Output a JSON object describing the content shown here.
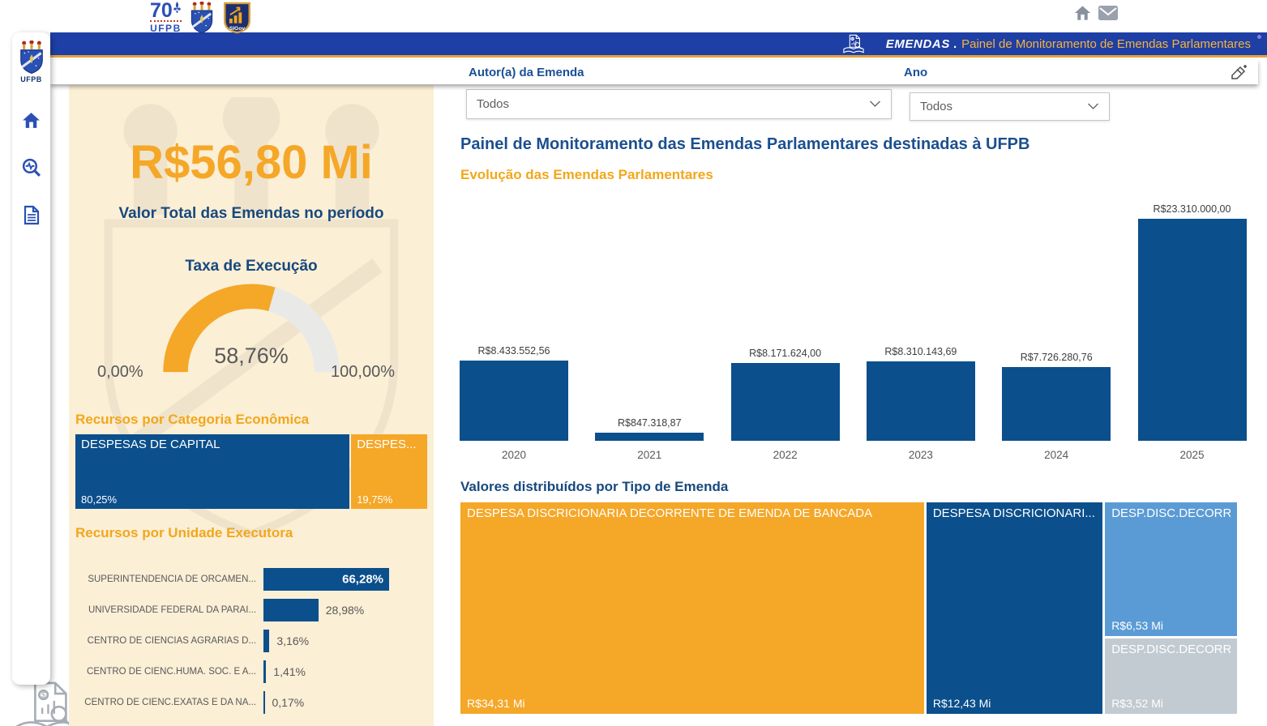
{
  "top_bar": {
    "logos": {
      "ufpb70_number": "70",
      "ufpb70_name": "UFPB",
      "sigov": "SIGov"
    }
  },
  "header": {
    "brand": "EMENDAS",
    "dot": ".",
    "title": "Painel de Monitoramento de Emendas Parlamentares"
  },
  "sidebar": {
    "logo_label": "UFPB"
  },
  "filters": {
    "autor": {
      "label": "Autor(a) da Emenda",
      "value": "Todos"
    },
    "ano": {
      "label": "Ano",
      "value": "Todos"
    }
  },
  "left_panel": {
    "kpi_value": "R$56,80 Mi",
    "kpi_label": "Valor Total das Emendas no período",
    "gauge_title": "Taxa de Execução",
    "categoria_title": "Recursos por Categoria Econômica",
    "unidade_title": "Recursos por Unidade Executora"
  },
  "main": {
    "title": "Painel de Monitoramento das Emendas Parlamentares destinadas à UFPB",
    "evolution_title": "Evolução das Emendas Parlamentares",
    "tipo_title": "Valores distribuídos por Tipo de Emenda"
  },
  "icons": {
    "home": "home-icon",
    "mail": "mail-icon",
    "search": "search-analytics-icon",
    "document": "document-icon",
    "clear_filter": "clear-filter-icon",
    "brand": "emendas-book-icon"
  },
  "colors": {
    "header_blue": "#1E3FA5",
    "bar_blue": "#0B4F8C",
    "orange": "#F5A728",
    "beige": "#FBEFD6",
    "light_blue": "#5B9BD5",
    "gray_block": "#C3CBD2",
    "title_blue": "#17497D"
  },
  "chart_data": [
    {
      "name": "taxa_execucao",
      "type": "gauge",
      "title": "Taxa de Execução",
      "value": 58.76,
      "value_label": "58,76%",
      "min": 0,
      "max": 100,
      "min_label": "0,00%",
      "max_label": "100,00%"
    },
    {
      "name": "categoria_economica",
      "type": "treemap",
      "title": "Recursos por Categoria Econômica",
      "items": [
        {
          "label": "DESPESAS DE CAPITAL",
          "value": 80.25,
          "value_label": "80,25%",
          "color": "#0B4F8C"
        },
        {
          "label": "DESPES...",
          "value": 19.75,
          "value_label": "19,75%",
          "color": "#F5A728"
        }
      ]
    },
    {
      "name": "unidade_executora",
      "type": "bar",
      "orientation": "horizontal",
      "title": "Recursos por Unidade Executora",
      "categories": [
        "SUPERINTENDENCIA DE ORCAMEN...",
        "UNIVERSIDADE FEDERAL DA PARAI...",
        "CENTRO DE CIENCIAS AGRARIAS D...",
        "CENTRO DE CIENC.HUMA. SOC. E A...",
        "CENTRO DE CIENC.EXATAS E DA NA..."
      ],
      "values": [
        66.28,
        28.98,
        3.16,
        1.41,
        0.17
      ],
      "value_labels": [
        "66,28%",
        "28,98%",
        "3,16%",
        "1,41%",
        "0,17%"
      ]
    },
    {
      "name": "evolucao_emendas",
      "type": "bar",
      "orientation": "vertical",
      "title": "Evolução das Emendas Parlamentares",
      "categories": [
        "2020",
        "2021",
        "2022",
        "2023",
        "2024",
        "2025"
      ],
      "values": [
        8433552.56,
        847318.87,
        8171624.0,
        8310143.69,
        7726280.76,
        23310000.0
      ],
      "value_labels": [
        "R$8.433.552,56",
        "R$847.318,87",
        "R$8.171.624,00",
        "R$8.310.143,69",
        "R$7.726.280,76",
        "R$23.310.000,00"
      ]
    },
    {
      "name": "tipo_emenda",
      "type": "treemap",
      "title": "Valores distribuídos por Tipo de Emenda",
      "items": [
        {
          "label": "DESPESA DISCRICIONARIA DECORRENTE DE EMENDA DE BANCADA",
          "value": 34.31,
          "value_label": "R$34,31 Mi",
          "color": "#F5A728"
        },
        {
          "label": "DESPESA DISCRICIONARI...",
          "value": 12.43,
          "value_label": "R$12,43 Mi",
          "color": "#0B4F8C"
        },
        {
          "label": "DESP.DISC.DECORRE...",
          "value": 6.53,
          "value_label": "R$6,53 Mi",
          "color": "#5B9BD5"
        },
        {
          "label": "DESP.DISC.DECORRE...",
          "value": 3.52,
          "value_label": "R$3,52 Mi",
          "color": "#C3CBD2"
        }
      ]
    }
  ]
}
